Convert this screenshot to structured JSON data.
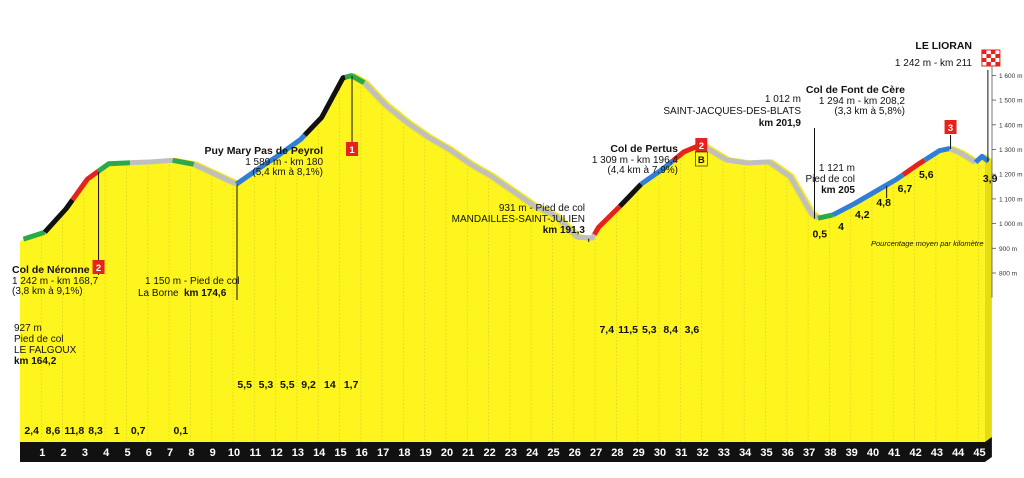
{
  "chart_data": {
    "type": "area",
    "x_unit": "km",
    "y_unit": "m",
    "ylim": [
      700,
      1650
    ],
    "y_ticks": [
      "800 m",
      "900 m",
      "1 000 m",
      "1 100 m",
      "1 200 m",
      "1 300 m",
      "1 400 m",
      "1 500 m",
      "1 600 m"
    ],
    "y_tick_values": [
      800,
      900,
      1000,
      1100,
      1200,
      1300,
      1400,
      1500,
      1600
    ],
    "axis_title": "Pourcentage moyen par kilomètre",
    "profile": [
      [
        0,
        927
      ],
      [
        1,
        955
      ],
      [
        2,
        1050
      ],
      [
        3,
        1170
      ],
      [
        4,
        1232
      ],
      [
        5,
        1236
      ],
      [
        6,
        1240
      ],
      [
        7,
        1246
      ],
      [
        8,
        1230
      ],
      [
        9,
        1190
      ],
      [
        10,
        1150
      ],
      [
        11,
        1210
      ],
      [
        12,
        1268
      ],
      [
        13,
        1330
      ],
      [
        14,
        1420
      ],
      [
        15,
        1580
      ],
      [
        15.4,
        1589
      ],
      [
        16,
        1560
      ],
      [
        17,
        1470
      ],
      [
        18,
        1400
      ],
      [
        19,
        1340
      ],
      [
        20,
        1290
      ],
      [
        21,
        1230
      ],
      [
        22,
        1180
      ],
      [
        23,
        1120
      ],
      [
        24,
        1060
      ],
      [
        25,
        1020
      ],
      [
        26,
        935
      ],
      [
        26.7,
        931
      ],
      [
        27,
        975
      ],
      [
        28,
        1060
      ],
      [
        29,
        1150
      ],
      [
        30,
        1210
      ],
      [
        31,
        1280
      ],
      [
        31.8,
        1309
      ],
      [
        32,
        1300
      ],
      [
        33,
        1248
      ],
      [
        34,
        1235
      ],
      [
        35,
        1240
      ],
      [
        36,
        1180
      ],
      [
        37,
        1030
      ],
      [
        37.3,
        1012
      ],
      [
        38,
        1025
      ],
      [
        39,
        1070
      ],
      [
        40,
        1120
      ],
      [
        41,
        1170
      ],
      [
        42,
        1230
      ],
      [
        43,
        1285
      ],
      [
        43.5,
        1294
      ],
      [
        44,
        1275
      ],
      [
        44.7,
        1238
      ],
      [
        45,
        1262
      ],
      [
        45.3,
        1242
      ]
    ],
    "segments": [
      {
        "from": 0,
        "to": 1,
        "color": "#2aa84a"
      },
      {
        "from": 1,
        "to": 2.3,
        "color": "#111111"
      },
      {
        "from": 2.3,
        "to": 3.5,
        "color": "#e3231c"
      },
      {
        "from": 3.5,
        "to": 5,
        "color": "#2aa84a"
      },
      {
        "from": 5,
        "to": 7,
        "color": "#bfbfbf"
      },
      {
        "from": 7,
        "to": 8,
        "color": "#2aa84a"
      },
      {
        "from": 8,
        "to": 10,
        "color": "#bfbfbf"
      },
      {
        "from": 10,
        "to": 13.2,
        "color": "#2f7fd6"
      },
      {
        "from": 13.2,
        "to": 15.1,
        "color": "#111111"
      },
      {
        "from": 15.1,
        "to": 16,
        "color": "#2aa84a"
      },
      {
        "from": 16,
        "to": 26.8,
        "color": "#bfbfbf"
      },
      {
        "from": 26.8,
        "to": 28,
        "color": "#e3231c"
      },
      {
        "from": 28,
        "to": 29,
        "color": "#111111"
      },
      {
        "from": 29,
        "to": 30.5,
        "color": "#2f7fd6"
      },
      {
        "from": 30.5,
        "to": 32,
        "color": "#e3231c"
      },
      {
        "from": 32,
        "to": 37.3,
        "color": "#bfbfbf"
      },
      {
        "from": 37.3,
        "to": 38,
        "color": "#2aa84a"
      },
      {
        "from": 38,
        "to": 41.3,
        "color": "#2f7fd6"
      },
      {
        "from": 41.3,
        "to": 42.3,
        "color": "#e3231c"
      },
      {
        "from": 42.3,
        "to": 43.5,
        "color": "#2f7fd6"
      },
      {
        "from": 43.5,
        "to": 44.7,
        "color": "#bfbfbf"
      },
      {
        "from": 44.7,
        "to": 45.3,
        "color": "#2f7fd6"
      }
    ],
    "km_labels": [
      "1",
      "2",
      "3",
      "4",
      "5",
      "6",
      "7",
      "8",
      "9",
      "10",
      "11",
      "12",
      "13",
      "14",
      "15",
      "16",
      "17",
      "18",
      "19",
      "20",
      "21",
      "22",
      "23",
      "24",
      "25",
      "26",
      "27",
      "28",
      "29",
      "30",
      "31",
      "32",
      "33",
      "34",
      "35",
      "36",
      "37",
      "38",
      "39",
      "40",
      "41",
      "42",
      "43",
      "44",
      "45"
    ],
    "gradients": [
      {
        "km": 1,
        "text": "2,4"
      },
      {
        "km": 2,
        "text": "8,6"
      },
      {
        "km": 3,
        "text": "11,8"
      },
      {
        "km": 4,
        "text": "8,3"
      },
      {
        "km": 5,
        "text": "1"
      },
      {
        "km": 6,
        "text": "0,7"
      },
      {
        "km": 8,
        "text": "0,1"
      },
      {
        "km": 11,
        "text": "5,5"
      },
      {
        "km": 12,
        "text": "5,3"
      },
      {
        "km": 13,
        "text": "5,5"
      },
      {
        "km": 14,
        "text": "9,2"
      },
      {
        "km": 15,
        "text": "14"
      },
      {
        "km": 16,
        "text": "1,7"
      },
      {
        "km": 28,
        "text": "7,4"
      },
      {
        "km": 29,
        "text": "11,5"
      },
      {
        "km": 30,
        "text": "5,3"
      },
      {
        "km": 31,
        "text": "8,4"
      },
      {
        "km": 32,
        "text": "3,6"
      },
      {
        "km": 38,
        "text": "0,5"
      },
      {
        "km": 39,
        "text": "4"
      },
      {
        "km": 40,
        "text": "4,2"
      },
      {
        "km": 41,
        "text": "4,8"
      },
      {
        "km": 42,
        "text": "6,7"
      },
      {
        "km": 43,
        "text": "5,6"
      },
      {
        "km": 46,
        "text": "3,9"
      }
    ],
    "annotations": [
      {
        "id": "start",
        "km": 0,
        "lines": [
          "927 m",
          "Pied de col",
          "LE FALGOUX",
          "km 164,2"
        ],
        "bold_last": true
      },
      {
        "id": "neronne",
        "km": 3.5,
        "badge": "2",
        "title": "Col de Néronne",
        "lines": [
          "1 242 m - km 168,7",
          "(3,8 km à 9,1%)"
        ]
      },
      {
        "id": "borne",
        "km": 10,
        "lines": [
          "1 150 m - Pied de col"
        ],
        "inline_prefix": "La Borne ",
        "inline_bold": "km 174,6"
      },
      {
        "id": "puymary",
        "km": 15.4,
        "badge": "1",
        "title": "Puy Mary Pas de Peyrol",
        "lines": [
          "1 589 m - km 180",
          "(5,4 km à 8,1%)"
        ]
      },
      {
        "id": "mandailles",
        "km": 26.7,
        "lines": [
          "931 m - Pied de col",
          "MANDAILLES-SAINT-JULIEN",
          "km 191,3"
        ],
        "bold_last": true
      },
      {
        "id": "pertus",
        "km": 31.8,
        "badge": "2",
        "bonus": "B",
        "title": "Col de Pertus",
        "lines": [
          "1 309 m - km 196,4",
          "(4,4 km à 7,9%)"
        ]
      },
      {
        "id": "stjacques",
        "km": 37.3,
        "lines": [
          "1 012 m",
          "SAINT-JACQUES-DES-BLATS",
          "km 201,9"
        ],
        "bold_last": true
      },
      {
        "id": "pied205",
        "km": 40.5,
        "lines": [
          "1 121 m",
          "Pied de col",
          "km 205"
        ],
        "bold_last": true
      },
      {
        "id": "fontcere",
        "km": 43.5,
        "badge": "3",
        "title": "Col de Font de Cère",
        "lines": [
          "1 294 m - km 208,2",
          "(3,3 km à 5,8%)"
        ]
      },
      {
        "id": "lioran",
        "km": 45.3,
        "title": "LE LIORAN",
        "lines": [
          "1 242 m - km 211"
        ],
        "finish": true
      }
    ],
    "colors": {
      "fill": "#fff51e",
      "road": "#111111",
      "badge": "#e3231c",
      "bonus": "#fff51e",
      "stripe": "#d8d02a"
    }
  }
}
